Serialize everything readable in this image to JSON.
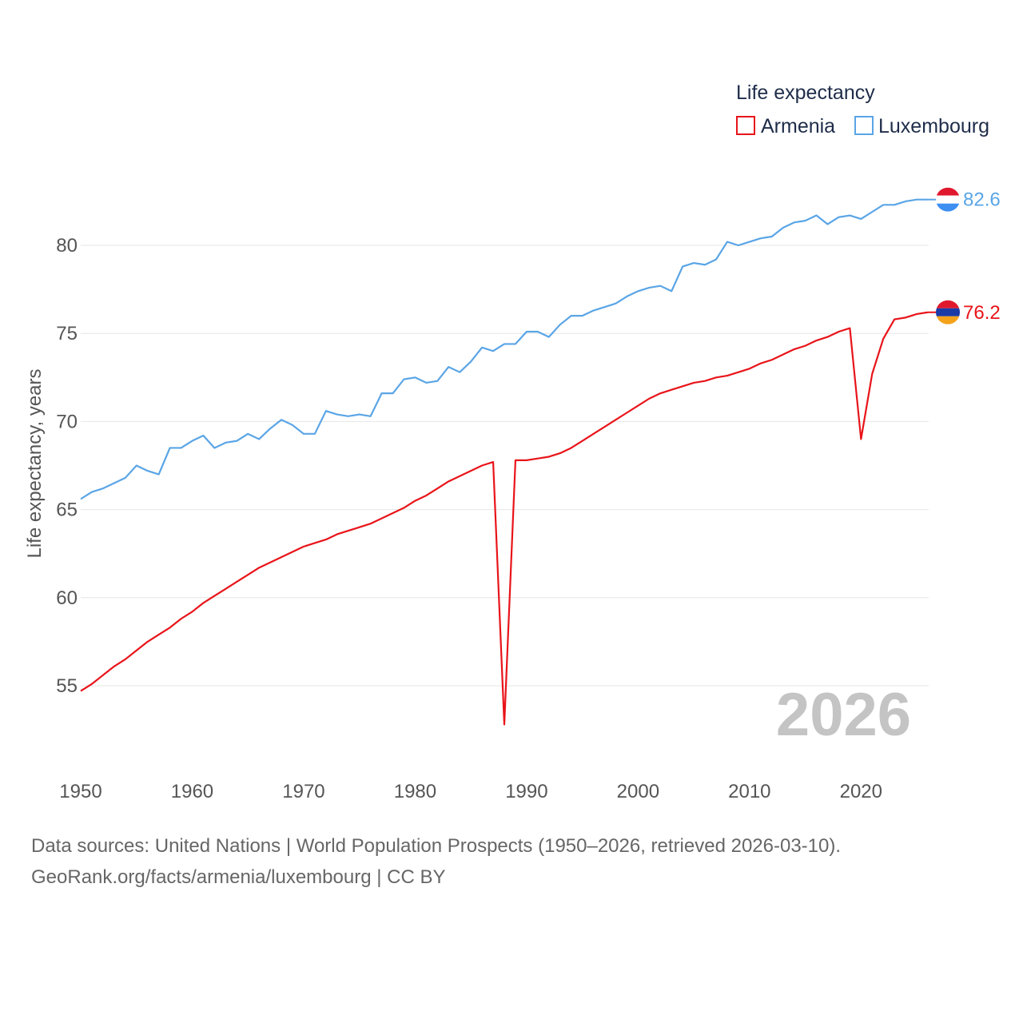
{
  "colors": {
    "armenia": "#e8141a",
    "luxembourg": "#5aa5e6",
    "grid": "#e6e6e6",
    "text": "#555555"
  },
  "legend": {
    "title": "Life expectancy",
    "items": [
      "Armenia",
      "Luxembourg"
    ]
  },
  "year_watermark": "2026",
  "end_labels": {
    "armenia": "76.2",
    "luxembourg": "82.6"
  },
  "footer": {
    "line1": "Data sources: United Nations | World Population Prospects (1950–2026, retrieved 2026-03-10).",
    "line2": "GeoRank.org/facts/armenia/luxembourg | CC BY"
  },
  "chart_data": {
    "type": "line",
    "title": "Life expectancy",
    "xlabel": "",
    "ylabel": "Life expectancy, years",
    "xlim": [
      1950,
      2026
    ],
    "ylim": [
      52,
      85
    ],
    "x_ticks": [
      1950,
      1960,
      1970,
      1980,
      1990,
      2000,
      2010,
      2020
    ],
    "y_ticks": [
      55,
      60,
      65,
      70,
      75,
      80
    ],
    "grid": true,
    "legend_position": "top-right",
    "x": [
      1950,
      1951,
      1952,
      1953,
      1954,
      1955,
      1956,
      1957,
      1958,
      1959,
      1960,
      1961,
      1962,
      1963,
      1964,
      1965,
      1966,
      1967,
      1968,
      1969,
      1970,
      1971,
      1972,
      1973,
      1974,
      1975,
      1976,
      1977,
      1978,
      1979,
      1980,
      1981,
      1982,
      1983,
      1984,
      1985,
      1986,
      1987,
      1988,
      1989,
      1990,
      1991,
      1992,
      1993,
      1994,
      1995,
      1996,
      1997,
      1998,
      1999,
      2000,
      2001,
      2002,
      2003,
      2004,
      2005,
      2006,
      2007,
      2008,
      2009,
      2010,
      2011,
      2012,
      2013,
      2014,
      2015,
      2016,
      2017,
      2018,
      2019,
      2020,
      2021,
      2022,
      2023,
      2024,
      2025,
      2026
    ],
    "series": [
      {
        "name": "Armenia",
        "values": [
          54.7,
          55.1,
          55.6,
          56.1,
          56.5,
          57.0,
          57.5,
          57.9,
          58.3,
          58.8,
          59.2,
          59.7,
          60.1,
          60.5,
          60.9,
          61.3,
          61.7,
          62.0,
          62.3,
          62.6,
          62.9,
          63.1,
          63.3,
          63.6,
          63.8,
          64.0,
          64.2,
          64.5,
          64.8,
          65.1,
          65.5,
          65.8,
          66.2,
          66.6,
          66.9,
          67.2,
          67.5,
          67.7,
          52.8,
          67.8,
          67.8,
          67.9,
          68.0,
          68.2,
          68.5,
          68.9,
          69.3,
          69.7,
          70.1,
          70.5,
          70.9,
          71.3,
          71.6,
          71.8,
          72.0,
          72.2,
          72.3,
          72.5,
          72.6,
          72.8,
          73.0,
          73.3,
          73.5,
          73.8,
          74.1,
          74.3,
          74.6,
          74.8,
          75.1,
          75.3,
          69.0,
          72.7,
          74.7,
          75.8,
          75.9,
          76.1,
          76.2
        ]
      },
      {
        "name": "Luxembourg",
        "values": [
          65.6,
          66.0,
          66.2,
          66.5,
          66.8,
          67.5,
          67.2,
          67.0,
          68.5,
          68.5,
          68.9,
          69.2,
          68.5,
          68.8,
          68.9,
          69.3,
          69.0,
          69.6,
          70.1,
          69.8,
          69.3,
          69.3,
          70.6,
          70.4,
          70.3,
          70.4,
          70.3,
          71.6,
          71.6,
          72.4,
          72.5,
          72.2,
          72.3,
          73.1,
          72.8,
          73.4,
          74.2,
          74.0,
          74.4,
          74.4,
          75.1,
          75.1,
          74.8,
          75.5,
          76.0,
          76.0,
          76.3,
          76.5,
          76.7,
          77.1,
          77.4,
          77.6,
          77.7,
          77.4,
          78.8,
          79.0,
          78.9,
          79.2,
          80.2,
          80.0,
          80.2,
          80.4,
          80.5,
          81.0,
          81.3,
          81.4,
          81.7,
          81.2,
          81.6,
          81.7,
          81.5,
          81.9,
          82.3,
          82.3,
          82.5,
          82.6,
          82.6
        ]
      }
    ]
  }
}
